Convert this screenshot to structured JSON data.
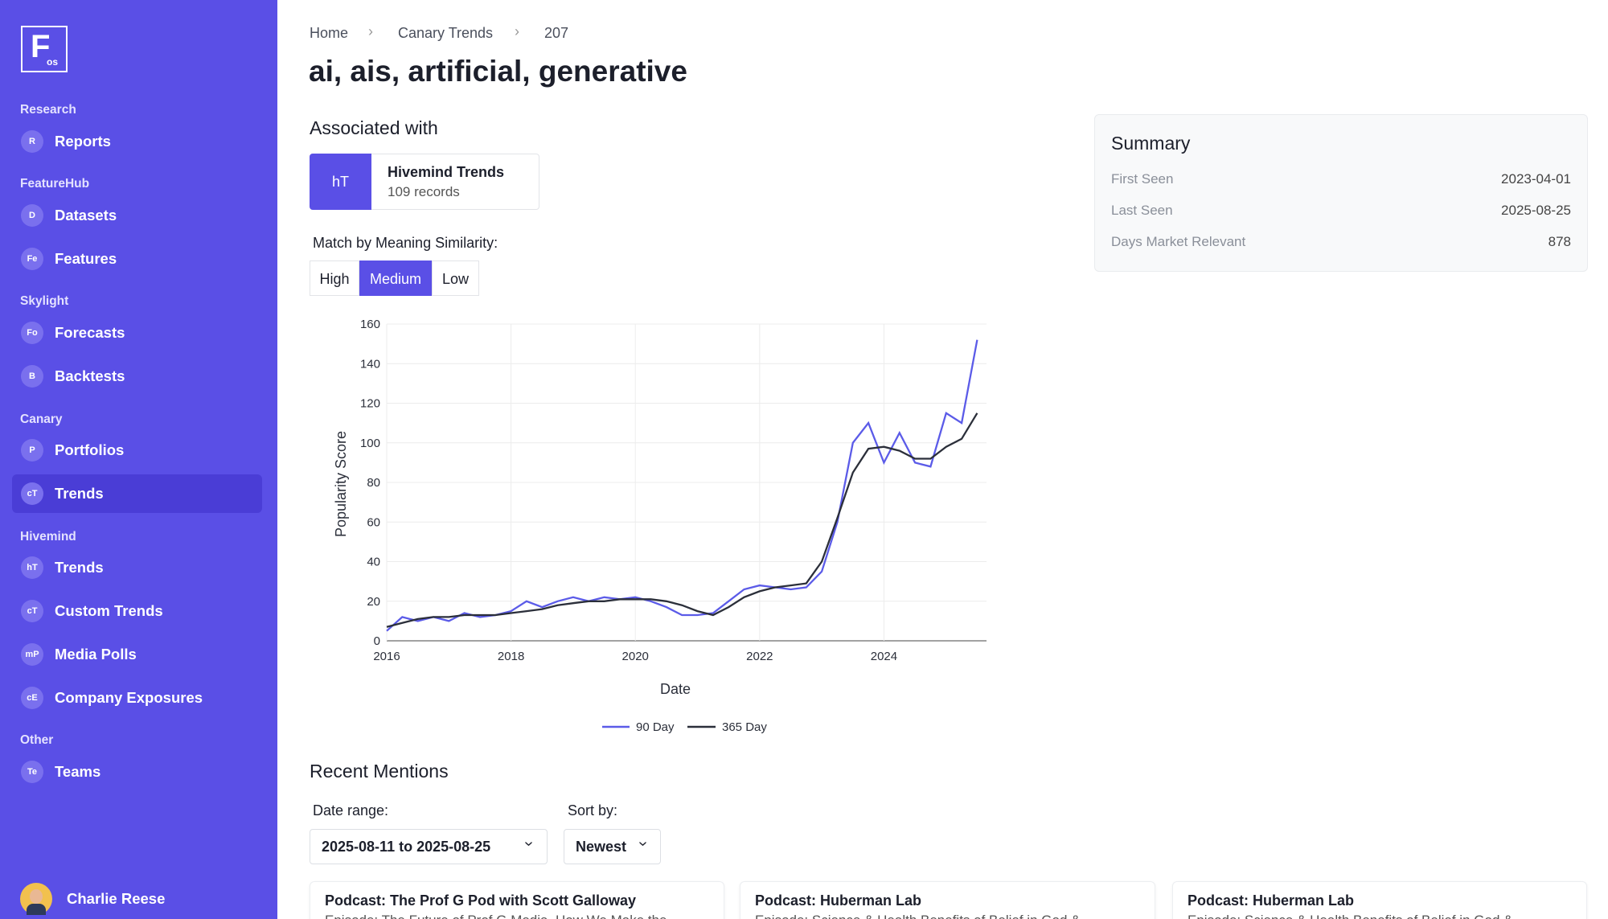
{
  "logo": {
    "letter": "F",
    "sub": "os"
  },
  "sidebar": [
    {
      "section": "Research",
      "items": [
        {
          "badge": "R",
          "label": "Reports"
        }
      ]
    },
    {
      "section": "FeatureHub",
      "items": [
        {
          "badge": "D",
          "label": "Datasets"
        },
        {
          "badge": "Fe",
          "label": "Features"
        }
      ]
    },
    {
      "section": "Skylight",
      "items": [
        {
          "badge": "Fo",
          "label": "Forecasts"
        },
        {
          "badge": "B",
          "label": "Backtests"
        }
      ]
    },
    {
      "section": "Canary",
      "items": [
        {
          "badge": "P",
          "label": "Portfolios"
        },
        {
          "badge": "cT",
          "label": "Trends",
          "active": true
        }
      ]
    },
    {
      "section": "Hivemind",
      "items": [
        {
          "badge": "hT",
          "label": "Trends"
        },
        {
          "badge": "cT",
          "label": "Custom Trends"
        },
        {
          "badge": "mP",
          "label": "Media Polls"
        },
        {
          "badge": "cE",
          "label": "Company Exposures"
        }
      ]
    },
    {
      "section": "Other",
      "items": [
        {
          "badge": "Te",
          "label": "Teams"
        }
      ]
    }
  ],
  "user": {
    "name": "Charlie Reese"
  },
  "breadcrumb": [
    "Home",
    "Canary Trends",
    "207"
  ],
  "title": "ai, ais, artificial, generative",
  "associated": {
    "heading": "Associated with",
    "badge": "hT",
    "name": "Hivemind Trends",
    "records": "109 records"
  },
  "match": {
    "label": "Match by Meaning Similarity:",
    "options": [
      "High",
      "Medium",
      "Low"
    ],
    "selected": 1
  },
  "summary": {
    "title": "Summary",
    "rows": [
      [
        "First Seen",
        "2023-04-01"
      ],
      [
        "Last Seen",
        "2025-08-25"
      ],
      [
        "Days Market Relevant",
        "878"
      ]
    ]
  },
  "chart_data": {
    "type": "line",
    "x_label": "Date",
    "y_label": "Popularity Score",
    "x": [
      2016,
      2016.25,
      2016.5,
      2016.75,
      2017,
      2017.25,
      2017.5,
      2017.75,
      2018,
      2018.25,
      2018.5,
      2018.75,
      2019,
      2019.25,
      2019.5,
      2019.75,
      2020,
      2020.25,
      2020.5,
      2020.75,
      2021,
      2021.25,
      2021.5,
      2021.75,
      2022,
      2022.25,
      2022.5,
      2022.75,
      2023,
      2023.25,
      2023.5,
      2023.75,
      2024,
      2024.25,
      2024.5,
      2024.75,
      2025,
      2025.25,
      2025.5
    ],
    "series": [
      {
        "name": "90 Day",
        "color": "#5b5be8",
        "values": [
          5,
          12,
          10,
          12,
          10,
          14,
          12,
          13,
          15,
          20,
          17,
          20,
          22,
          20,
          22,
          21,
          22,
          20,
          17,
          13,
          13,
          14,
          20,
          26,
          28,
          27,
          26,
          27,
          35,
          60,
          100,
          110,
          90,
          105,
          90,
          88,
          115,
          110,
          152
        ]
      },
      {
        "name": "365 Day",
        "color": "#2b2f3a",
        "values": [
          7,
          9,
          11,
          12,
          12,
          13,
          13,
          13,
          14,
          15,
          16,
          18,
          19,
          20,
          20,
          21,
          21,
          21,
          20,
          18,
          15,
          13,
          17,
          22,
          25,
          27,
          28,
          29,
          40,
          62,
          85,
          97,
          98,
          96,
          92,
          92,
          98,
          102,
          115
        ]
      }
    ],
    "xlim": [
      2016,
      2025.65
    ],
    "xticks": [
      2016,
      2018,
      2020,
      2022,
      2024
    ],
    "ylim": [
      0,
      160
    ],
    "yticks": [
      0,
      20,
      40,
      60,
      80,
      100,
      120,
      140,
      160
    ],
    "grid": true
  },
  "mentions": {
    "heading": "Recent Mentions",
    "date_label": "Date range:",
    "date_value": "2025-08-11 to 2025-08-25",
    "sort_label": "Sort by:",
    "sort_value": "Newest",
    "cards": [
      {
        "title": "Podcast: The Prof G Pod with Scott Galloway",
        "episode": "Episode: The Future of Prof G Media, How We Make the"
      },
      {
        "title": "Podcast: Huberman Lab",
        "episode": "Episode: Science & Health Benefits of Belief in God &"
      },
      {
        "title": "Podcast: Huberman Lab",
        "episode": "Episode: Science & Health Benefits of Belief in God &"
      }
    ]
  }
}
